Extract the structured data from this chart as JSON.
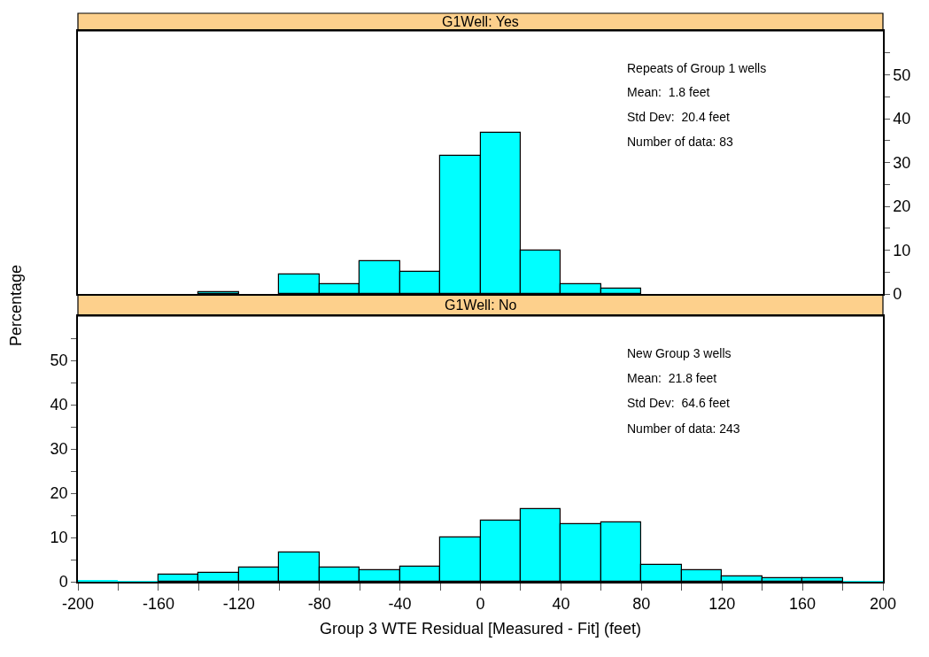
{
  "chart_data": [
    {
      "type": "histogram",
      "title": "G1Well: Yes",
      "ylabel": "Percentage",
      "color": "#00ffff",
      "bins": [
        -200,
        -180,
        -160,
        -140,
        -120,
        -100,
        -80,
        -60,
        -40,
        -20,
        0,
        20,
        40,
        60,
        80,
        100,
        120,
        140,
        160,
        180,
        200
      ],
      "values": [
        0,
        0,
        0,
        0.5,
        0,
        4.5,
        2.3,
        7.4,
        5.1,
        31.5,
        36.8,
        9.8,
        2.3,
        1.2,
        0,
        0,
        0,
        0,
        0,
        0
      ],
      "xlim": [
        -200,
        200
      ],
      "ylim": [
        0,
        60
      ],
      "yticks": [
        0,
        {
          "value": 5,
          "label": null
        },
        10,
        {
          "value": 15,
          "label": null
        },
        20,
        {
          "value": 25,
          "label": null
        },
        30,
        {
          "value": 35,
          "label": null
        },
        40,
        {
          "value": 45,
          "label": null
        },
        50,
        {
          "value": 55,
          "label": null
        }
      ],
      "tick_labels": "y",
      "grid": false,
      "legend": false,
      "annotations": [
        "Repeats of Group 1 wells",
        "Mean:  1.8 feet",
        "Std Dev:  20.4 feet",
        "Number of data: 83"
      ]
    },
    {
      "type": "histogram",
      "title": "G1Well: No",
      "xlabel": "Group 3 WTE Residual [Measured - Fit] (feet)",
      "color": "#00ffff",
      "bins": [
        -200,
        -180,
        -160,
        -140,
        -120,
        -100,
        -80,
        -60,
        -40,
        -20,
        0,
        20,
        40,
        60,
        80,
        100,
        120,
        140,
        160,
        180,
        200
      ],
      "values": [
        0.3,
        0.1,
        1.6,
        2.0,
        3.2,
        6.6,
        3.2,
        2.6,
        3.5,
        10.1,
        13.8,
        16.4,
        13.1,
        13.5,
        3.9,
        2.6,
        1.3,
        0.9,
        0.9,
        0.1
      ],
      "xlim": [
        -200,
        200
      ],
      "ylim": [
        0,
        60
      ],
      "xticks": [
        -200,
        {
          "value": -180,
          "label": null
        },
        -160,
        {
          "value": -140,
          "label": null
        },
        -120,
        {
          "value": -100,
          "label": null
        },
        -80,
        {
          "value": -60,
          "label": null
        },
        -40,
        {
          "value": -20,
          "label": null
        },
        0,
        {
          "value": 20,
          "label": null
        },
        40,
        {
          "value": 60,
          "label": null
        },
        80,
        {
          "value": 100,
          "label": null
        },
        120,
        {
          "value": 140,
          "label": null
        },
        160,
        {
          "value": 180,
          "label": null
        },
        200
      ],
      "yticks": [
        0,
        {
          "value": 5,
          "label": null
        },
        10,
        {
          "value": 15,
          "label": null
        },
        20,
        {
          "value": 25,
          "label": null
        },
        30,
        {
          "value": 35,
          "label": null
        },
        40,
        {
          "value": 45,
          "label": null
        },
        50,
        {
          "value": 55,
          "label": null
        }
      ],
      "grid": false,
      "legend": false,
      "annotations": [
        "New Group 3 wells",
        "Mean:  21.8 feet",
        "Std Dev:  64.6 feet",
        "Number of data: 243"
      ]
    }
  ]
}
